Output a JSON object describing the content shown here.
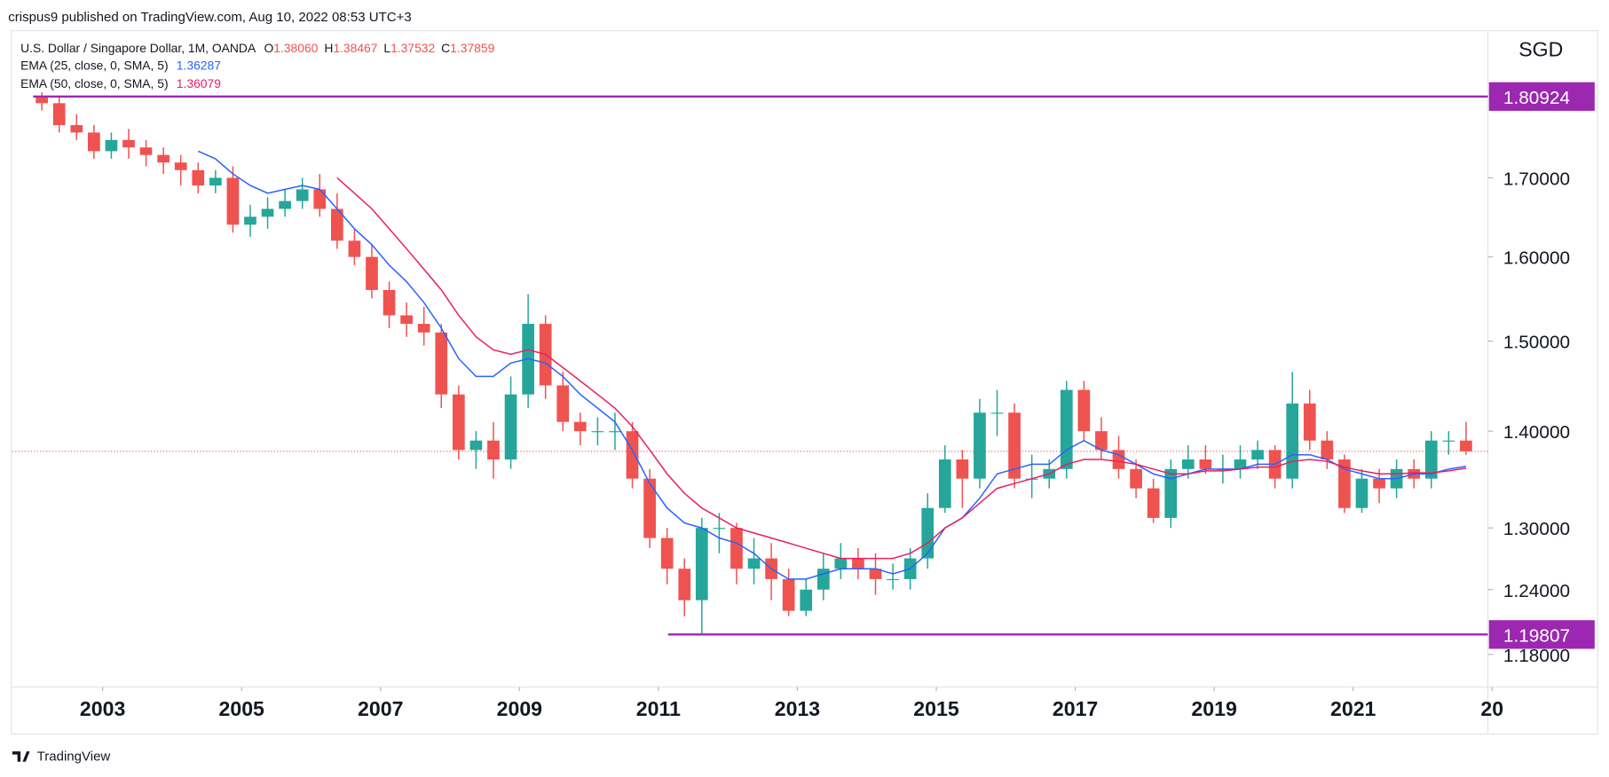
{
  "header": {
    "published": "crispus9 published on TradingView.com, Aug 10, 2022 08:53 UTC+3",
    "brand": "TradingView"
  },
  "chart_data": {
    "type": "candlestick",
    "title": "U.S. Dollar / Singapore Dollar, 1M, OANDA",
    "ohlc_labels": [
      "O",
      "H",
      "L",
      "C"
    ],
    "ohlc_values": [
      {
        "value": 1.3806,
        "label": "1.38060"
      },
      1.38467,
      1.37532,
      1.37859
    ],
    "currency": "SGD",
    "log_scale": true,
    "up_color": "#26a69a",
    "down_color": "#ef5350",
    "x": [
      2002,
      2002.25,
      2002.5,
      2002.75,
      2003,
      2003.25,
      2003.5,
      2003.75,
      2004,
      2004.25,
      2004.5,
      2004.75,
      2005,
      2005.25,
      2005.5,
      2005.75,
      2006,
      2006.25,
      2006.5,
      2006.75,
      2007,
      2007.25,
      2007.5,
      2007.75,
      2008,
      2008.25,
      2008.5,
      2008.75,
      2009,
      2009.25,
      2009.5,
      2009.75,
      2010,
      2010.25,
      2010.5,
      2010.75,
      2011,
      2011.25,
      2011.5,
      2011.75,
      2012,
      2012.25,
      2012.5,
      2012.75,
      2013,
      2013.25,
      2013.5,
      2013.75,
      2014,
      2014.25,
      2014.5,
      2014.75,
      2015,
      2015.25,
      2015.5,
      2015.75,
      2016,
      2016.25,
      2016.5,
      2016.75,
      2017,
      2017.25,
      2017.5,
      2017.75,
      2018,
      2018.25,
      2018.5,
      2018.75,
      2019,
      2019.25,
      2019.5,
      2019.75,
      2020,
      2020.25,
      2020.5,
      2020.75,
      2021,
      2021.25,
      2021.5,
      2021.75,
      2022,
      2022.25,
      2022.5
    ],
    "open": [
      1.81,
      1.8,
      1.77,
      1.76,
      1.735,
      1.75,
      1.74,
      1.73,
      1.72,
      1.71,
      1.69,
      1.7,
      1.64,
      1.65,
      1.66,
      1.67,
      1.685,
      1.66,
      1.62,
      1.6,
      1.56,
      1.53,
      1.52,
      1.51,
      1.44,
      1.38,
      1.39,
      1.37,
      1.44,
      1.52,
      1.45,
      1.41,
      1.4,
      1.4,
      1.4,
      1.35,
      1.29,
      1.26,
      1.23,
      1.3,
      1.3,
      1.26,
      1.27,
      1.25,
      1.22,
      1.24,
      1.26,
      1.27,
      1.26,
      1.25,
      1.25,
      1.27,
      1.32,
      1.37,
      1.35,
      1.42,
      1.42,
      1.35,
      1.35,
      1.36,
      1.445,
      1.4,
      1.38,
      1.36,
      1.34,
      1.31,
      1.36,
      1.37,
      1.36,
      1.36,
      1.37,
      1.38,
      1.35,
      1.43,
      1.39,
      1.37,
      1.32,
      1.35,
      1.34,
      1.36,
      1.35,
      1.39,
      1.39
    ],
    "high": [
      1.815,
      1.81,
      1.785,
      1.77,
      1.76,
      1.765,
      1.75,
      1.74,
      1.73,
      1.72,
      1.71,
      1.715,
      1.665,
      1.675,
      1.685,
      1.7,
      1.705,
      1.68,
      1.635,
      1.615,
      1.57,
      1.545,
      1.54,
      1.52,
      1.45,
      1.4,
      1.41,
      1.46,
      1.555,
      1.53,
      1.465,
      1.42,
      1.415,
      1.42,
      1.41,
      1.36,
      1.3,
      1.27,
      1.31,
      1.315,
      1.305,
      1.29,
      1.285,
      1.26,
      1.25,
      1.275,
      1.285,
      1.28,
      1.275,
      1.265,
      1.28,
      1.335,
      1.385,
      1.38,
      1.435,
      1.445,
      1.43,
      1.375,
      1.37,
      1.455,
      1.455,
      1.415,
      1.395,
      1.37,
      1.35,
      1.37,
      1.385,
      1.385,
      1.375,
      1.385,
      1.39,
      1.385,
      1.465,
      1.445,
      1.4,
      1.375,
      1.36,
      1.36,
      1.37,
      1.37,
      1.4,
      1.4,
      1.41
    ],
    "low": [
      1.79,
      1.76,
      1.75,
      1.725,
      1.725,
      1.725,
      1.715,
      1.705,
      1.69,
      1.68,
      1.68,
      1.63,
      1.625,
      1.635,
      1.65,
      1.66,
      1.65,
      1.61,
      1.59,
      1.55,
      1.515,
      1.505,
      1.495,
      1.425,
      1.37,
      1.36,
      1.35,
      1.36,
      1.425,
      1.435,
      1.4,
      1.385,
      1.385,
      1.38,
      1.34,
      1.28,
      1.245,
      1.215,
      1.198,
      1.275,
      1.245,
      1.245,
      1.23,
      1.215,
      1.215,
      1.23,
      1.25,
      1.25,
      1.235,
      1.24,
      1.24,
      1.26,
      1.315,
      1.32,
      1.34,
      1.395,
      1.34,
      1.33,
      1.34,
      1.35,
      1.39,
      1.37,
      1.35,
      1.33,
      1.305,
      1.3,
      1.35,
      1.355,
      1.345,
      1.35,
      1.36,
      1.34,
      1.34,
      1.38,
      1.36,
      1.315,
      1.315,
      1.325,
      1.33,
      1.34,
      1.34,
      1.375,
      1.375
    ],
    "close": [
      1.8,
      1.77,
      1.76,
      1.735,
      1.75,
      1.74,
      1.73,
      1.72,
      1.71,
      1.69,
      1.7,
      1.64,
      1.65,
      1.66,
      1.67,
      1.685,
      1.66,
      1.62,
      1.6,
      1.56,
      1.53,
      1.52,
      1.51,
      1.44,
      1.38,
      1.39,
      1.37,
      1.44,
      1.52,
      1.45,
      1.41,
      1.4,
      1.4,
      1.4,
      1.35,
      1.29,
      1.26,
      1.23,
      1.3,
      1.3,
      1.26,
      1.27,
      1.25,
      1.22,
      1.24,
      1.26,
      1.27,
      1.26,
      1.25,
      1.25,
      1.27,
      1.32,
      1.37,
      1.35,
      1.42,
      1.42,
      1.35,
      1.35,
      1.36,
      1.445,
      1.4,
      1.38,
      1.36,
      1.34,
      1.31,
      1.36,
      1.37,
      1.36,
      1.36,
      1.37,
      1.38,
      1.35,
      1.43,
      1.39,
      1.37,
      1.32,
      1.35,
      1.34,
      1.36,
      1.35,
      1.39,
      1.39,
      1.37859
    ],
    "series": [
      {
        "name": "EMA (25, close, 0, SMA, 5)",
        "color": "#2962ff",
        "values": [
          null,
          null,
          null,
          null,
          null,
          null,
          null,
          null,
          null,
          1.735,
          1.725,
          1.705,
          1.69,
          1.68,
          1.685,
          1.69,
          1.685,
          1.66,
          1.635,
          1.615,
          1.59,
          1.57,
          1.545,
          1.515,
          1.48,
          1.46,
          1.46,
          1.475,
          1.48,
          1.475,
          1.46,
          1.44,
          1.425,
          1.41,
          1.38,
          1.345,
          1.32,
          1.305,
          1.3,
          1.29,
          1.285,
          1.275,
          1.26,
          1.25,
          1.25,
          1.255,
          1.26,
          1.26,
          1.26,
          1.255,
          1.26,
          1.275,
          1.3,
          1.31,
          1.33,
          1.355,
          1.36,
          1.365,
          1.365,
          1.38,
          1.39,
          1.38,
          1.375,
          1.365,
          1.355,
          1.35,
          1.355,
          1.36,
          1.36,
          1.36,
          1.365,
          1.365,
          1.375,
          1.375,
          1.37,
          1.36,
          1.355,
          1.35,
          1.35,
          1.355,
          1.355,
          1.36,
          1.36287
        ]
      },
      {
        "name": "EMA (50, close, 0, SMA, 5)",
        "color": "#e91e63",
        "values": [
          null,
          null,
          null,
          null,
          null,
          null,
          null,
          null,
          null,
          null,
          null,
          null,
          null,
          null,
          null,
          null,
          null,
          1.7,
          1.68,
          1.66,
          1.635,
          1.61,
          1.585,
          1.56,
          1.53,
          1.505,
          1.49,
          1.485,
          1.49,
          1.485,
          1.47,
          1.455,
          1.44,
          1.425,
          1.405,
          1.38,
          1.355,
          1.335,
          1.32,
          1.31,
          1.3,
          1.295,
          1.29,
          1.285,
          1.28,
          1.275,
          1.27,
          1.27,
          1.27,
          1.27,
          1.275,
          1.285,
          1.3,
          1.31,
          1.325,
          1.34,
          1.345,
          1.35,
          1.355,
          1.365,
          1.37,
          1.37,
          1.368,
          1.365,
          1.36,
          1.355,
          1.355,
          1.358,
          1.358,
          1.36,
          1.362,
          1.362,
          1.368,
          1.37,
          1.368,
          1.362,
          1.358,
          1.355,
          1.355,
          1.356,
          1.356,
          1.358,
          1.36079
        ]
      }
    ],
    "levels": [
      {
        "value": 1.80924,
        "label": "1.80924",
        "start": 2002.0,
        "color": "#9c27b0"
      },
      {
        "value": 1.19807,
        "label": "1.19807",
        "start": 2011.14,
        "color": "#9c27b0"
      }
    ],
    "xlim": [
      2001.7,
      2022.94
    ],
    "xticks": [
      2003,
      2005,
      2007,
      2009,
      2011,
      2013,
      2015,
      2017,
      2019,
      2021,
      {
        "value": 2023,
        "label": "20"
      }
    ],
    "ylim": [
      1.1508,
      1.8954
    ],
    "yticks": [
      {
        "value": 1.7,
        "label": "1.70000"
      },
      {
        "value": 1.6,
        "label": "1.60000"
      },
      {
        "value": 1.5,
        "label": "1.50000"
      },
      {
        "value": 1.4,
        "label": "1.40000"
      },
      {
        "value": 1.3,
        "label": "1.30000"
      },
      {
        "value": 1.24,
        "label": "1.24000"
      },
      {
        "value": 1.18,
        "label": "1.18000"
      }
    ],
    "grid": false
  }
}
